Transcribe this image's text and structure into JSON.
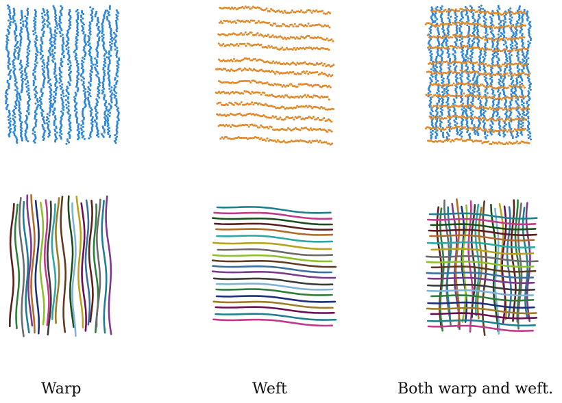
{
  "figure": {
    "captions": {
      "warp": "Warp",
      "weft": "Weft",
      "both": "Both warp and weft."
    },
    "colors": {
      "warp_points": "#2f86d6",
      "weft_points": "#e08a2c",
      "fiber_palette": [
        "#5a1e1e",
        "#2e7d3a",
        "#6b6b6b",
        "#1f7f8f",
        "#7a3a8a",
        "#b06a2a",
        "#1d2f7a",
        "#8cbf2e",
        "#c03a8a",
        "#3a3a3a",
        "#2aa7a0",
        "#9c7b2b",
        "#5f3b22",
        "#1b4d1b",
        "#7fb3d5",
        "#b7a21e",
        "#6a0f50",
        "#3b6e9e"
      ]
    }
  }
}
